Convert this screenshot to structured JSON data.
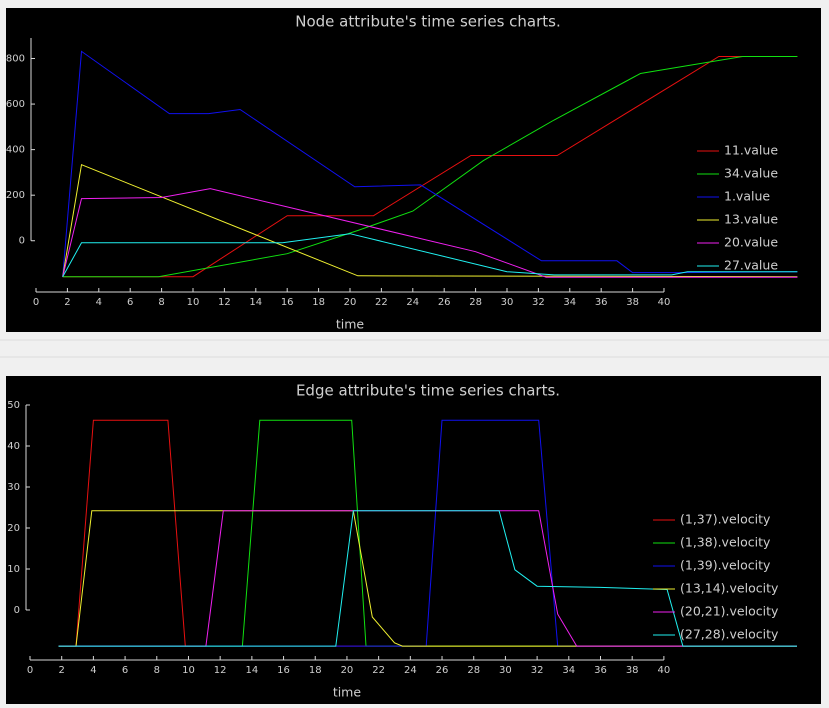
{
  "chart_data": [
    {
      "type": "line",
      "title": "Node attribute's time series charts.",
      "x_label": "time",
      "xlim": [
        0,
        48.6
      ],
      "ylim": [
        -225,
        890
      ],
      "xticks": [
        0,
        2,
        4,
        6,
        8,
        10,
        12,
        14,
        16,
        18,
        20,
        22,
        24,
        26,
        28,
        30,
        32,
        34,
        36,
        38,
        40
      ],
      "yticks": [
        0,
        200,
        400,
        600,
        800
      ],
      "legend": "right",
      "series": [
        {
          "name": "11.value",
          "color": "#e81010",
          "x": [
            1.7,
            10,
            16,
            21.5,
            27.7,
            33.2,
            43.5,
            48.5
          ],
          "values": [
            -158,
            -158,
            110,
            110,
            374,
            374,
            809,
            809
          ]
        },
        {
          "name": "34.value",
          "color": "#10e010",
          "x": [
            1.7,
            7.8,
            16,
            20.5,
            24,
            28.5,
            33,
            38.5,
            45,
            48.5
          ],
          "values": [
            -158,
            -158,
            -57,
            45,
            130,
            352,
            530,
            734,
            809,
            809
          ]
        },
        {
          "name": "1.value",
          "color": "#1010f0",
          "x": [
            1.7,
            2.9,
            8.5,
            11,
            13,
            20.3,
            24.5,
            32.2,
            37,
            38,
            41,
            48.5
          ],
          "values": [
            -158,
            831,
            558,
            558,
            576,
            237,
            245,
            -88,
            -88,
            -140,
            -140,
            -136
          ]
        },
        {
          "name": "13.value",
          "color": "#f0f030",
          "x": [
            1.7,
            2.9,
            20.5,
            48.5
          ],
          "values": [
            -158,
            334,
            -154,
            -158
          ]
        },
        {
          "name": "20.value",
          "color": "#f020f0",
          "x": [
            1.7,
            2.9,
            8,
            11.1,
            28,
            32.5,
            48.5
          ],
          "values": [
            -158,
            185,
            190,
            229,
            -48,
            -160,
            -160
          ]
        },
        {
          "name": "27.value",
          "color": "#20f0f0",
          "x": [
            1.7,
            2.9,
            15.7,
            20,
            30,
            33,
            40.5,
            41.5,
            48.5
          ],
          "values": [
            -158,
            -9,
            -9,
            31,
            -136,
            -150,
            -150,
            -136,
            -136
          ]
        }
      ]
    },
    {
      "type": "line",
      "title": "Edge attribute's time series charts.",
      "x_label": "time",
      "xlim": [
        0,
        48.4
      ],
      "ylim": [
        -12.2,
        50
      ],
      "xticks": [
        0,
        2,
        4,
        6,
        8,
        10,
        12,
        14,
        16,
        18,
        20,
        22,
        24,
        26,
        28,
        30,
        32,
        34,
        36,
        38,
        40
      ],
      "yticks": [
        0,
        10,
        20,
        30,
        40,
        50
      ],
      "legend": "right",
      "series": [
        {
          "name": "(1,37).velocity",
          "color": "#e81010",
          "x": [
            1.8,
            2.9,
            4,
            8.7,
            9.8,
            48.4
          ],
          "values": [
            -8.8,
            -8.8,
            46.3,
            46.3,
            -8.8,
            -8.8
          ]
        },
        {
          "name": "(1,38).velocity",
          "color": "#10e010",
          "x": [
            1.8,
            13.4,
            14.5,
            20.3,
            21.2,
            48.4
          ],
          "values": [
            -8.8,
            -8.8,
            46.3,
            46.3,
            -8.8,
            -8.8
          ]
        },
        {
          "name": "(1,39).velocity",
          "color": "#1010f0",
          "x": [
            1.8,
            25,
            26,
            32.1,
            33.3,
            48.4
          ],
          "values": [
            -8.8,
            -8.8,
            46.3,
            46.3,
            -8.8,
            -8.8
          ]
        },
        {
          "name": "(13,14).velocity",
          "color": "#f0f030",
          "x": [
            1.8,
            2.9,
            3.9,
            20.4,
            21.6,
            23,
            23.5,
            48.4
          ],
          "values": [
            -8.8,
            -8.8,
            24.2,
            24.2,
            -1.7,
            -8,
            -8.8,
            -8.8
          ]
        },
        {
          "name": "(20,21).velocity",
          "color": "#f020f0",
          "x": [
            1.8,
            11.1,
            12.2,
            32.1,
            33.3,
            34.5,
            48.4
          ],
          "values": [
            -8.8,
            -8.8,
            24.2,
            24.2,
            -1,
            -8.8,
            -8.8
          ]
        },
        {
          "name": "(27,28).velocity",
          "color": "#20f0f0",
          "x": [
            1.8,
            19.3,
            20.4,
            29.6,
            30.6,
            32,
            36,
            40.2,
            41.2,
            48.4
          ],
          "values": [
            -8.8,
            -8.8,
            24.2,
            24.2,
            9.8,
            5.8,
            5.5,
            5,
            -8.8,
            -8.8
          ]
        }
      ]
    }
  ]
}
